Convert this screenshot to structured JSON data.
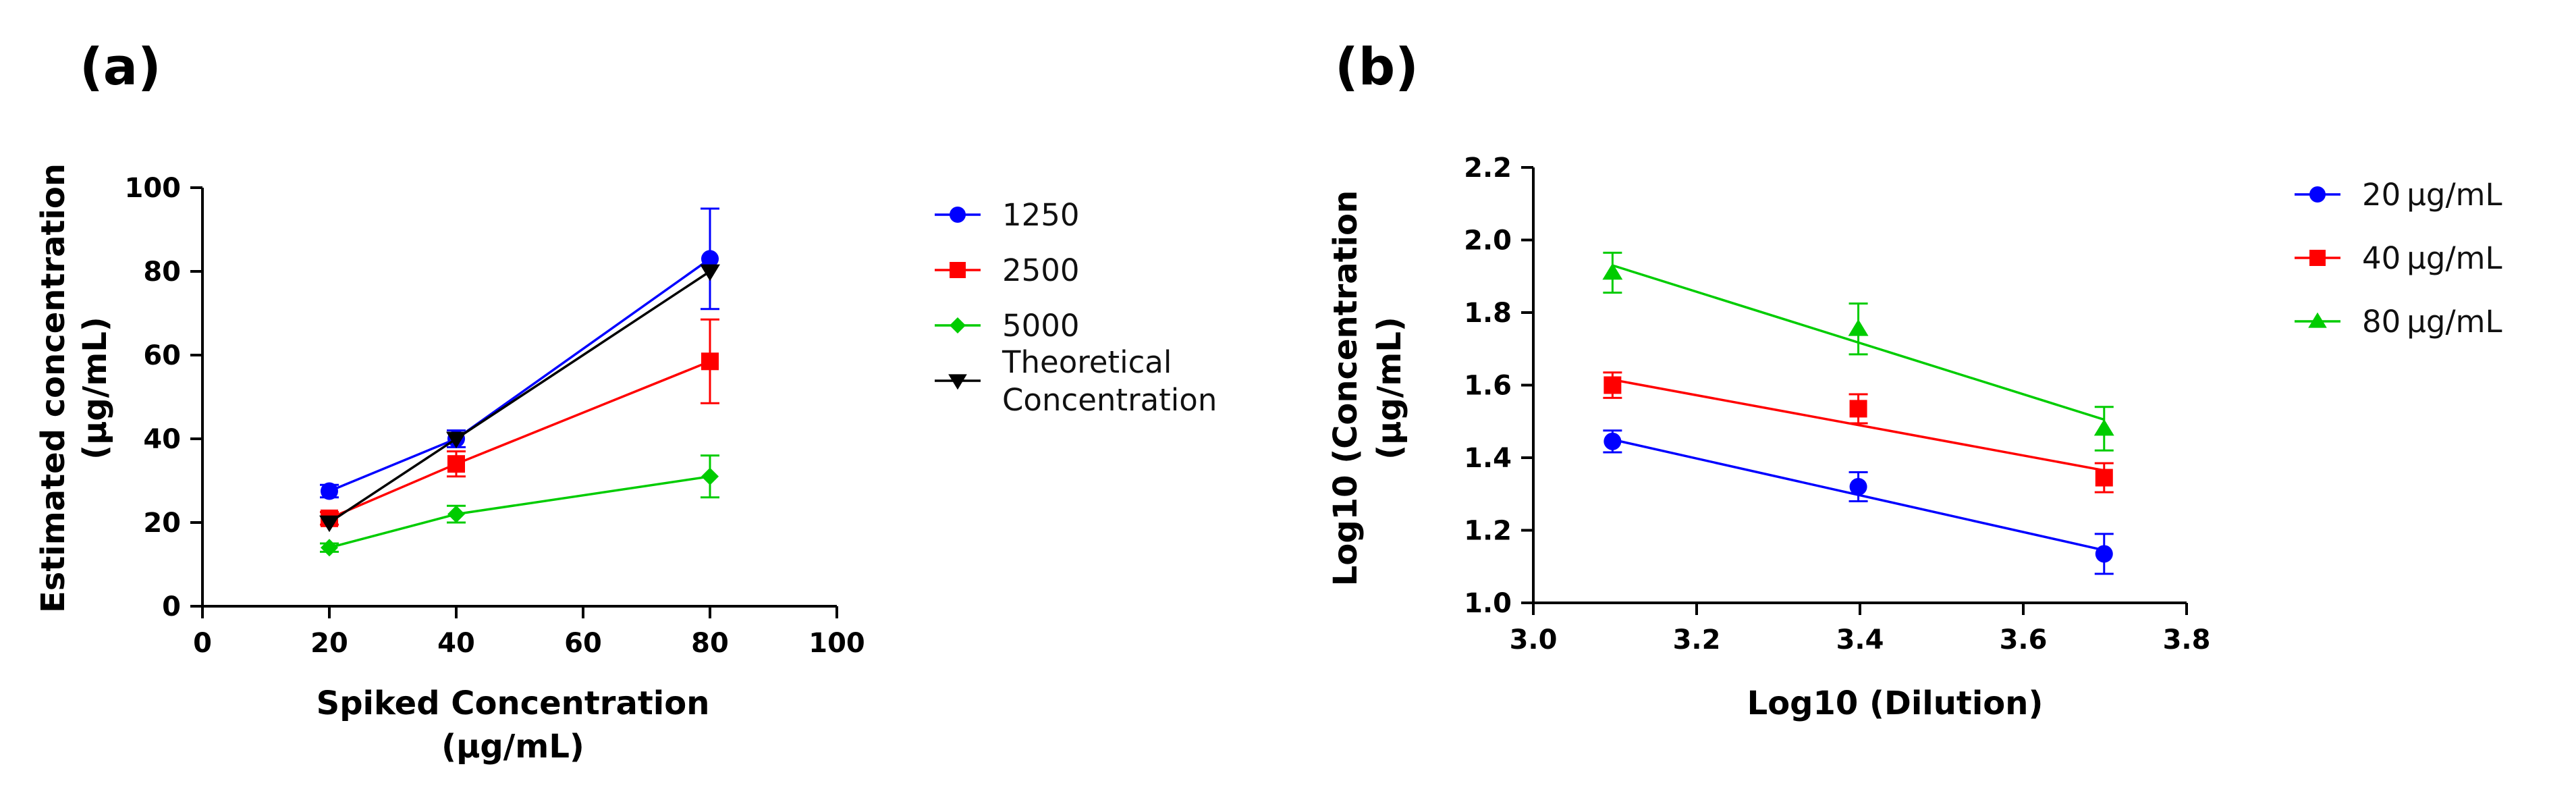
{
  "chart_data": [
    {
      "panel_label": "(a)",
      "type": "line",
      "xlabel": "Spiked Concentration",
      "xlabel_unit": "(μg/mL)",
      "ylabel": "Estimated concentration",
      "ylabel_unit": "(μg/mL)",
      "xlim": [
        0,
        100
      ],
      "ylim": [
        0,
        100
      ],
      "xticks": [
        0,
        20,
        40,
        60,
        80,
        100
      ],
      "yticks": [
        0,
        20,
        40,
        60,
        80,
        100
      ],
      "grid": false,
      "legend_position": "right",
      "series": [
        {
          "name": "1250",
          "color": "#0000ff",
          "marker": "circle",
          "x": [
            20,
            40,
            80
          ],
          "y": [
            27.5,
            40,
            83
          ],
          "err": [
            1.5,
            2,
            12
          ]
        },
        {
          "name": "2500",
          "color": "#ff0000",
          "marker": "square",
          "x": [
            20,
            40,
            80
          ],
          "y": [
            21,
            34,
            58.5
          ],
          "err": [
            1.5,
            3,
            10
          ]
        },
        {
          "name": "5000",
          "color": "#00cc00",
          "marker": "diamond",
          "x": [
            20,
            40,
            80
          ],
          "y": [
            14,
            22,
            31
          ],
          "err": [
            1,
            2,
            5
          ]
        },
        {
          "name": "Theoretical Concentration",
          "name_lines": [
            "Theoretical",
            "Concentration"
          ],
          "color": "#000000",
          "marker": "triangle-down",
          "x": [
            20,
            40,
            80
          ],
          "y": [
            20,
            40,
            80
          ],
          "err": [
            0,
            0,
            0
          ]
        }
      ]
    },
    {
      "panel_label": "(b)",
      "type": "scatter",
      "xlabel": "Log10 (Dilution)",
      "ylabel": "Log10 (Concentration",
      "ylabel_unit": "(μg/mL)",
      "xlim": [
        3.0,
        3.8
      ],
      "ylim": [
        1.0,
        2.2
      ],
      "xticks": [
        "3.0",
        "3.2",
        "3.4",
        "3.6",
        "3.8"
      ],
      "yticks": [
        "1.0",
        "1.2",
        "1.4",
        "1.6",
        "1.8",
        "2.0",
        "2.2"
      ],
      "grid": false,
      "legend_position": "right",
      "series": [
        {
          "name": "20 μg/mL",
          "color": "#0000ff",
          "marker": "circle",
          "x": [
            3.097,
            3.398,
            3.699
          ],
          "y": [
            1.445,
            1.32,
            1.135
          ],
          "err": [
            0.03,
            0.04,
            0.055
          ],
          "fit": [
            1.45,
            1.145
          ]
        },
        {
          "name": "40 μg/mL",
          "color": "#ff0000",
          "marker": "square",
          "x": [
            3.097,
            3.398,
            3.699
          ],
          "y": [
            1.6,
            1.535,
            1.345
          ],
          "err": [
            0.035,
            0.04,
            0.04
          ],
          "fit": [
            1.615,
            1.365
          ]
        },
        {
          "name": "80 μg/mL",
          "color": "#00cc00",
          "marker": "triangle-up",
          "x": [
            3.097,
            3.398,
            3.699
          ],
          "y": [
            1.91,
            1.755,
            1.48
          ],
          "err": [
            0.055,
            0.07,
            0.06
          ],
          "fit": [
            1.93,
            1.505
          ]
        }
      ]
    }
  ]
}
